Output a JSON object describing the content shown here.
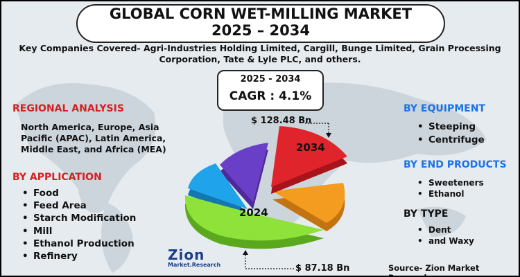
{
  "title": {
    "line1": "GLOBAL CORN WET-MILLING MARKET",
    "line2": "2025 – 2034"
  },
  "key_companies": "Key Companies Covered- Agri-Industries Holding Limited, Cargill, Bunge Limited, Grain Processing Corporation, Tate & Lyle PLC, and others.",
  "cagr": {
    "period": "2025 - 2034",
    "value": "CAGR : 4.1%"
  },
  "regional": {
    "title": "REGIONAL ANALYSIS",
    "text": "North America, Europe, Asia Pacific (APAC), Latin America, Middle East, and Africa (MEA)"
  },
  "application": {
    "title": "BY APPLICATION",
    "items": [
      "Food",
      "Feed Area",
      "Starch Modification",
      "Mill",
      "Ethanol Production",
      "Refinery"
    ]
  },
  "equipment": {
    "title": "BY EQUIPMENT",
    "items": [
      "Steeping",
      "Centrifuge"
    ]
  },
  "end_products": {
    "title": "BY END PRODUCTS",
    "items": [
      "Sweeteners",
      "Ethanol"
    ]
  },
  "type": {
    "title": "BY TYPE",
    "items": [
      "Dent",
      "and Waxy"
    ]
  },
  "values": {
    "value_2034": "$ 128.48 Bn",
    "value_2024": "$ 87.18 Bn"
  },
  "pie_labels": {
    "label_2034": "2034",
    "label_2024": "2024"
  },
  "logo": {
    "main": "Zion",
    "sub": "Market.Research"
  },
  "source": "Source- Zion Market Research",
  "colors": {
    "red_heading": "#d42020",
    "blue_heading": "#1a73e8",
    "slice_red": "#e0242b",
    "slice_orange": "#f39c1f",
    "slice_green": "#8ee23a",
    "slice_blue": "#1fa3ea",
    "slice_purple": "#6a3fc7"
  }
}
